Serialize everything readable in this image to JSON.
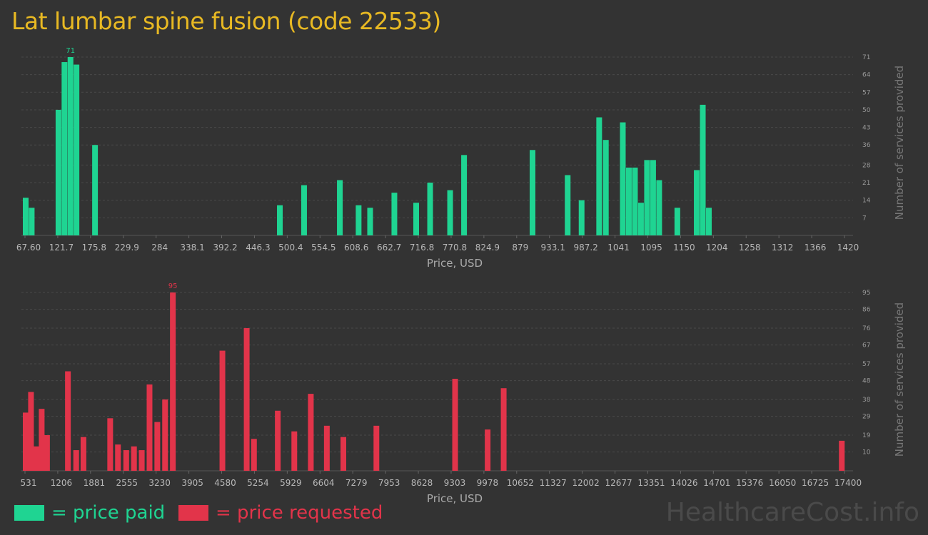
{
  "title": "Lat lumbar spine fusion (code 22533)",
  "colors": {
    "paid": "#1fd492",
    "requested": "#e2344a",
    "title": "#e8b923"
  },
  "legend": {
    "paid_label": "= price paid",
    "requested_label": "= price requested"
  },
  "watermark": "HealthcareCost.info",
  "chart_data": [
    {
      "type": "bar",
      "name": "price paid",
      "xlabel": "Price, USD",
      "ylabel": "Number of services provided",
      "ylim": [
        0,
        71
      ],
      "yticks": [
        7,
        14,
        21,
        28,
        36,
        43,
        50,
        57,
        64,
        71
      ],
      "xticks": [
        "67.60",
        "121.7",
        "175.8",
        "229.9",
        "284",
        "338.1",
        "392.2",
        "446.3",
        "500.4",
        "554.5",
        "608.6",
        "662.7",
        "716.8",
        "770.8",
        "824.9",
        "879",
        "933.1",
        "987.2",
        "1041",
        "1095",
        "1150",
        "1204",
        "1258",
        "1312",
        "1366",
        "1420"
      ],
      "peak_label": "71",
      "bars": [
        {
          "x": 67.6,
          "y": 15
        },
        {
          "x": 77.5,
          "y": 11
        },
        {
          "x": 121.7,
          "y": 50
        },
        {
          "x": 131.6,
          "y": 69
        },
        {
          "x": 141.5,
          "y": 71
        },
        {
          "x": 151.4,
          "y": 68
        },
        {
          "x": 182,
          "y": 36
        },
        {
          "x": 487,
          "y": 12
        },
        {
          "x": 527,
          "y": 20
        },
        {
          "x": 586,
          "y": 22
        },
        {
          "x": 617,
          "y": 12
        },
        {
          "x": 636,
          "y": 11
        },
        {
          "x": 676,
          "y": 17
        },
        {
          "x": 712,
          "y": 13
        },
        {
          "x": 735,
          "y": 21
        },
        {
          "x": 768,
          "y": 18
        },
        {
          "x": 791,
          "y": 32
        },
        {
          "x": 904,
          "y": 34
        },
        {
          "x": 962,
          "y": 24
        },
        {
          "x": 985,
          "y": 14
        },
        {
          "x": 1014,
          "y": 47
        },
        {
          "x": 1025,
          "y": 38
        },
        {
          "x": 1053,
          "y": 45
        },
        {
          "x": 1063,
          "y": 27
        },
        {
          "x": 1073,
          "y": 27
        },
        {
          "x": 1083,
          "y": 13
        },
        {
          "x": 1093,
          "y": 30
        },
        {
          "x": 1103,
          "y": 30
        },
        {
          "x": 1113,
          "y": 22
        },
        {
          "x": 1143,
          "y": 11
        },
        {
          "x": 1175,
          "y": 26
        },
        {
          "x": 1185,
          "y": 52
        },
        {
          "x": 1195,
          "y": 11
        }
      ]
    },
    {
      "type": "bar",
      "name": "price requested",
      "xlabel": "Price, USD",
      "ylabel": "Number of services provided",
      "ylim": [
        0,
        95
      ],
      "yticks": [
        10,
        19,
        29,
        38,
        48,
        57,
        67,
        76,
        86,
        95
      ],
      "xticks": [
        "531",
        "1206",
        "1881",
        "2555",
        "3230",
        "3905",
        "4580",
        "5254",
        "5929",
        "6604",
        "7279",
        "7953",
        "8628",
        "9303",
        "9978",
        "10652",
        "11327",
        "12002",
        "12677",
        "13351",
        "14026",
        "14701",
        "15376",
        "16050",
        "16725",
        "17400"
      ],
      "peak_label": "95",
      "bars": [
        {
          "x": 531,
          "y": 31
        },
        {
          "x": 640,
          "y": 42
        },
        {
          "x": 750,
          "y": 13
        },
        {
          "x": 860,
          "y": 33
        },
        {
          "x": 970,
          "y": 19
        },
        {
          "x": 1400,
          "y": 53
        },
        {
          "x": 1570,
          "y": 11
        },
        {
          "x": 1720,
          "y": 18
        },
        {
          "x": 2270,
          "y": 28
        },
        {
          "x": 2430,
          "y": 14
        },
        {
          "x": 2600,
          "y": 11
        },
        {
          "x": 2760,
          "y": 13
        },
        {
          "x": 2920,
          "y": 11
        },
        {
          "x": 3080,
          "y": 46
        },
        {
          "x": 3240,
          "y": 26
        },
        {
          "x": 3400,
          "y": 38
        },
        {
          "x": 3560,
          "y": 95
        },
        {
          "x": 4580,
          "y": 64
        },
        {
          "x": 5080,
          "y": 76
        },
        {
          "x": 5230,
          "y": 17
        },
        {
          "x": 5720,
          "y": 32
        },
        {
          "x": 6060,
          "y": 21
        },
        {
          "x": 6400,
          "y": 41
        },
        {
          "x": 6730,
          "y": 24
        },
        {
          "x": 7070,
          "y": 18
        },
        {
          "x": 7750,
          "y": 24
        },
        {
          "x": 9370,
          "y": 49
        },
        {
          "x": 10040,
          "y": 22
        },
        {
          "x": 10370,
          "y": 44
        },
        {
          "x": 17330,
          "y": 16
        }
      ]
    }
  ]
}
